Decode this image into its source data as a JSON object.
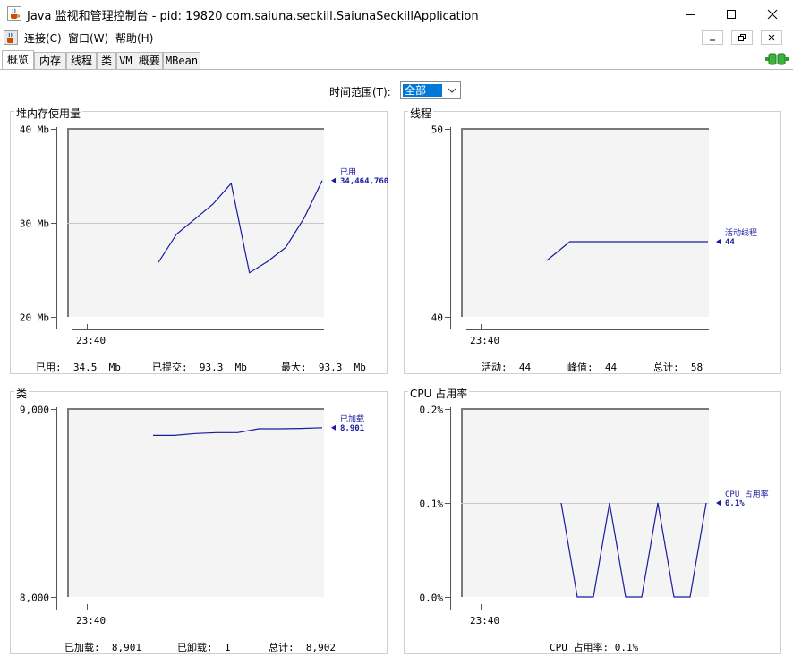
{
  "window": {
    "title": "Java 监视和管理控制台 - pid: 19820 com.saiuna.seckill.SaiunaSeckillApplication",
    "app_icon": "java-coffee-cup-icon"
  },
  "menu": {
    "items": [
      "连接(C)",
      "窗口(W)",
      "帮助(H)"
    ]
  },
  "tabs": [
    "概览",
    "内存",
    "线程",
    "类",
    "VM 概要",
    "MBean"
  ],
  "active_tab": "概览",
  "time_range": {
    "label": "时间范围(T):",
    "value": "全部"
  },
  "colors": {
    "series": "#1a1aa0",
    "plot_bg": "#f4f4f4",
    "grid": "#c8c8c8",
    "axis": "#555555",
    "connected_icon": "#2e9e2e"
  },
  "panels": {
    "heap": {
      "title": "堆内存使用量",
      "legend_label": "已用",
      "legend_value": "34,464,760",
      "stats": [
        "已用:  34.5  Mb",
        "已提交:  93.3  Mb",
        "最大:  93.3  Mb"
      ]
    },
    "threads": {
      "title": "线程",
      "legend_label": "活动线程",
      "legend_value": "44",
      "stats": [
        "活动:  44",
        "峰值:  44",
        "总计:  58"
      ]
    },
    "classes": {
      "title": "类",
      "legend_label": "已加载",
      "legend_value": "8,901",
      "stats": [
        "已加载:  8,901",
        "已卸载:  1",
        "总计:  8,902"
      ]
    },
    "cpu": {
      "title": "CPU 占用率",
      "legend_label": "CPU 占用率",
      "legend_value": "0.1%",
      "stats": [
        "CPU 占用率: 0.1%"
      ]
    }
  },
  "chart_data": [
    {
      "type": "line",
      "title": "堆内存使用量",
      "ylim": [
        20,
        40
      ],
      "yticks": [
        "20 Mb",
        "30 Mb",
        "40 Mb"
      ],
      "xticks": [
        "23:40"
      ],
      "series": [
        {
          "name": "已用",
          "values": [
            25.8,
            28.8,
            30.4,
            32.0,
            34.2,
            24.7,
            25.9,
            27.4,
            30.5,
            34.5
          ]
        }
      ]
    },
    {
      "type": "line",
      "title": "线程",
      "ylim": [
        40,
        50
      ],
      "yticks": [
        "40",
        "50"
      ],
      "xticks": [
        "23:40"
      ],
      "series": [
        {
          "name": "活动线程",
          "values": [
            43,
            44,
            44,
            44,
            44,
            44,
            44,
            44
          ]
        }
      ]
    },
    {
      "type": "line",
      "title": "类",
      "ylim": [
        8000,
        9000
      ],
      "yticks": [
        "8,000",
        "9,000"
      ],
      "xticks": [
        "23:40"
      ],
      "series": [
        {
          "name": "已加载",
          "values": [
            8860,
            8860,
            8870,
            8875,
            8875,
            8895,
            8895,
            8897,
            8901
          ]
        }
      ]
    },
    {
      "type": "line",
      "title": "CPU 占用率",
      "ylim": [
        0,
        0.2
      ],
      "yticks": [
        "0.0%",
        "0.1%",
        "0.2%"
      ],
      "xticks": [
        "23:40"
      ],
      "series": [
        {
          "name": "CPU 占用率",
          "values": [
            0.1,
            0.0,
            0.0,
            0.1,
            0.0,
            0.0,
            0.1,
            0.0,
            0.0,
            0.1
          ]
        }
      ]
    }
  ]
}
